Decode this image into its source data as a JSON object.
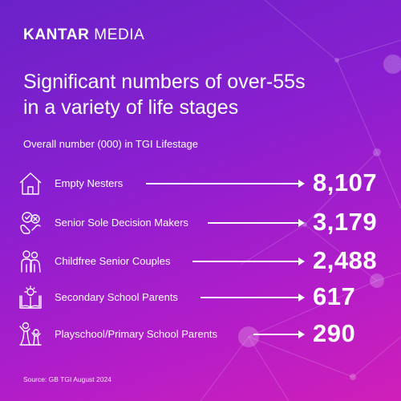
{
  "brand": {
    "bold": "KANTAR",
    "rest": " MEDIA"
  },
  "title_line1": "Significant numbers of over-55s",
  "title_line2": "in a variety of life stages",
  "subtitle": "Overall number (000) in TGI Lifestage",
  "source": "Source: GB TGI August 2024",
  "chart_data": {
    "type": "table",
    "title": "Significant numbers of over-55s in a variety of life stages",
    "subtitle": "Overall number (000) in TGI Lifestage",
    "rows": [
      {
        "label": "Empty Nesters",
        "value": 8107,
        "display": "8,107",
        "icon": "house-icon"
      },
      {
        "label": "Senior Sole Decision Makers",
        "value": 3179,
        "display": "3,179",
        "icon": "decision-hands-icon"
      },
      {
        "label": "Childfree Senior Couples",
        "value": 2488,
        "display": "2,488",
        "icon": "couple-icon"
      },
      {
        "label": "Secondary School Parents",
        "value": 617,
        "display": "617",
        "icon": "book-lightbulb-icon"
      },
      {
        "label": "Playschool/Primary School Parents",
        "value": 290,
        "display": "290",
        "icon": "parent-child-icon"
      }
    ]
  }
}
